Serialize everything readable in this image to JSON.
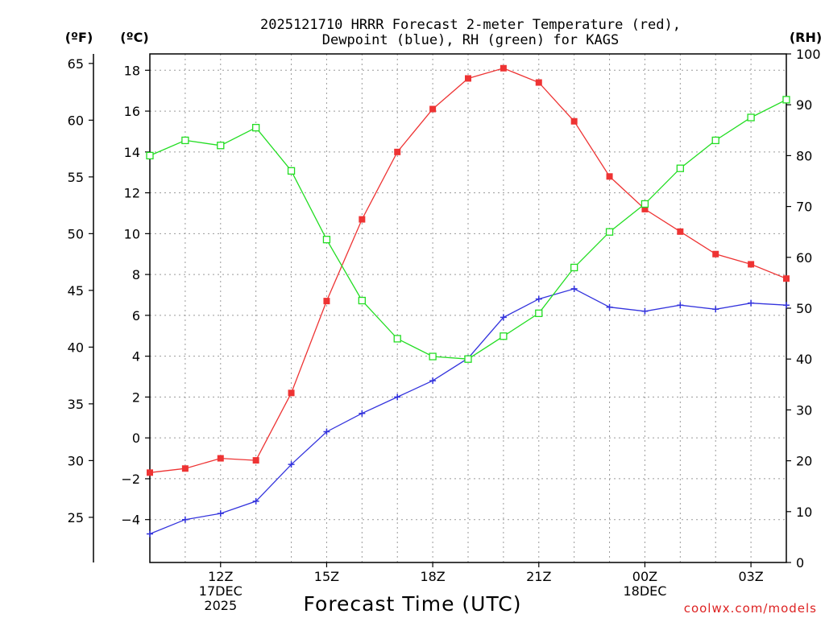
{
  "chart_data": {
    "type": "line",
    "title_line1": "2025121710 HRRR Forecast 2-meter Temperature (red),",
    "title_line2": "Dewpoint (blue), RH (green) for KAGS",
    "xlabel": "Forecast Time (UTC)",
    "left_outer_unit": "(ºF)",
    "left_inner_unit": "(ºC)",
    "right_unit": "(RH)",
    "credit": "coolwx.com/models",
    "x_hours": [
      10,
      11,
      12,
      13,
      14,
      15,
      16,
      17,
      18,
      19,
      20,
      21,
      22,
      23,
      24,
      25,
      26,
      27,
      28
    ],
    "xlim": [
      10,
      28
    ],
    "x_ticks": [
      {
        "hour": 12,
        "lines": [
          "12Z",
          "17DEC",
          "2025"
        ]
      },
      {
        "hour": 15,
        "lines": [
          "15Z"
        ]
      },
      {
        "hour": 18,
        "lines": [
          "18Z"
        ]
      },
      {
        "hour": 21,
        "lines": [
          "21Z"
        ]
      },
      {
        "hour": 24,
        "lines": [
          "00Z",
          "18DEC"
        ]
      },
      {
        "hour": 27,
        "lines": [
          "03Z"
        ]
      }
    ],
    "ylim_c": [
      -6.1,
      18.8
    ],
    "ylim_rh": [
      0,
      100
    ],
    "yticks_c": [
      -4,
      -2,
      0,
      2,
      4,
      6,
      8,
      10,
      12,
      14,
      16,
      18
    ],
    "ytick_labels_c": [
      "−4",
      "−2",
      "0",
      "2",
      "4",
      "6",
      "8",
      "10",
      "12",
      "14",
      "16",
      "18"
    ],
    "yticks_f": [
      25,
      30,
      35,
      40,
      45,
      50,
      55,
      60,
      65
    ],
    "ytick_labels_f": [
      "25",
      "30",
      "35",
      "40",
      "45",
      "50",
      "55",
      "60",
      "65"
    ],
    "yticks_rh": [
      0,
      10,
      20,
      30,
      40,
      50,
      60,
      70,
      80,
      90,
      100
    ],
    "ytick_labels_rh": [
      "0",
      "10",
      "20",
      "30",
      "40",
      "50",
      "60",
      "70",
      "80",
      "90",
      "100"
    ],
    "series": [
      {
        "name": "2-meter Temperature",
        "unit": "C",
        "axis": "left",
        "color": "#ee3333",
        "marker": "filled-square",
        "values": [
          -1.7,
          -1.5,
          -1.0,
          -1.1,
          2.2,
          6.7,
          10.7,
          14.0,
          16.1,
          17.6,
          18.1,
          17.4,
          15.5,
          12.8,
          11.2,
          10.1,
          9.0,
          8.5,
          7.8
        ]
      },
      {
        "name": "Dewpoint",
        "unit": "C",
        "axis": "left",
        "color": "#3333dd",
        "marker": "plus",
        "values": [
          -4.7,
          -4.0,
          -3.7,
          -3.1,
          -1.3,
          0.3,
          1.2,
          2.0,
          2.8,
          3.9,
          5.9,
          6.8,
          7.3,
          6.4,
          6.2,
          6.5,
          6.3,
          6.6,
          6.5
        ]
      },
      {
        "name": "RH",
        "unit": "%",
        "axis": "right",
        "color": "#22dd22",
        "marker": "open-square",
        "values": [
          80,
          83,
          82,
          85.5,
          77,
          63.5,
          51.5,
          44,
          40.5,
          40,
          44.5,
          49,
          58,
          65,
          70.5,
          77.5,
          83,
          87.5,
          91
        ]
      }
    ]
  }
}
